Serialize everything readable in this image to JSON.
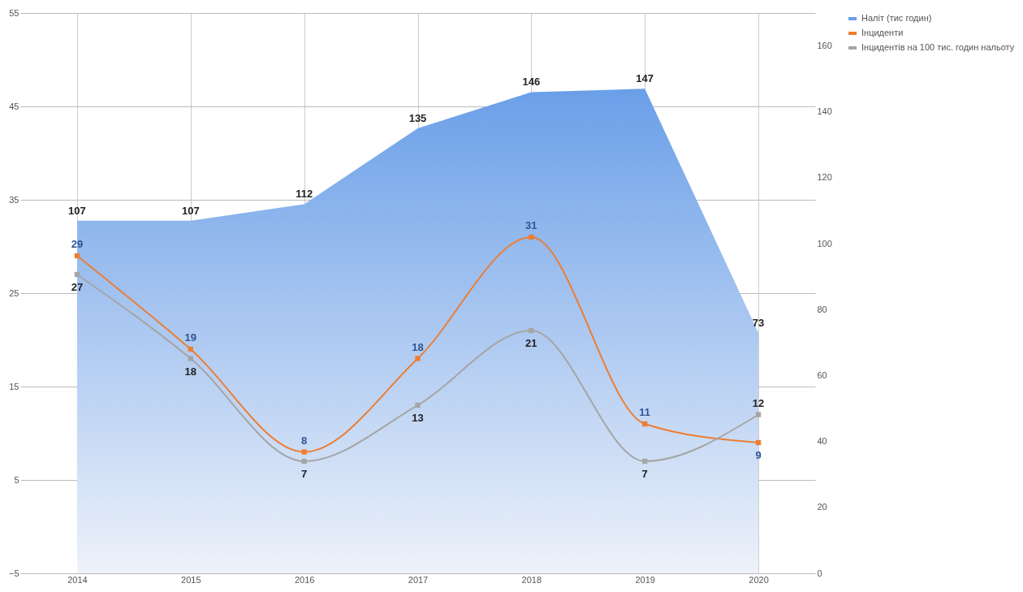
{
  "chart_data": {
    "type": "line",
    "categories": [
      "2014",
      "2015",
      "2016",
      "2017",
      "2018",
      "2019",
      "2020"
    ],
    "series": [
      {
        "name": "Наліт (тис годин)",
        "type": "area",
        "axis": "y2",
        "color": "#6a9fe8",
        "values": [
          107,
          107,
          112,
          135,
          146,
          147,
          73
        ]
      },
      {
        "name": "Інциденти",
        "marker": "square",
        "color": "#ed7d31",
        "values": [
          29,
          19,
          8,
          18,
          31,
          11,
          9
        ]
      },
      {
        "name": "Інцидентів на 100 тис. годин нальоту",
        "marker": "square",
        "color": "#a5a5a5",
        "values": [
          27,
          18,
          7,
          13,
          21,
          7,
          12
        ]
      }
    ],
    "ylim": [
      -5,
      55
    ],
    "yticks": [
      -5,
      5,
      15,
      25,
      35,
      45,
      55
    ],
    "y2lim": [
      0,
      170
    ],
    "y2ticks": [
      0,
      20,
      40,
      60,
      80,
      100,
      120,
      140,
      160
    ],
    "grid": true,
    "legend": "right",
    "data_labels": true
  }
}
